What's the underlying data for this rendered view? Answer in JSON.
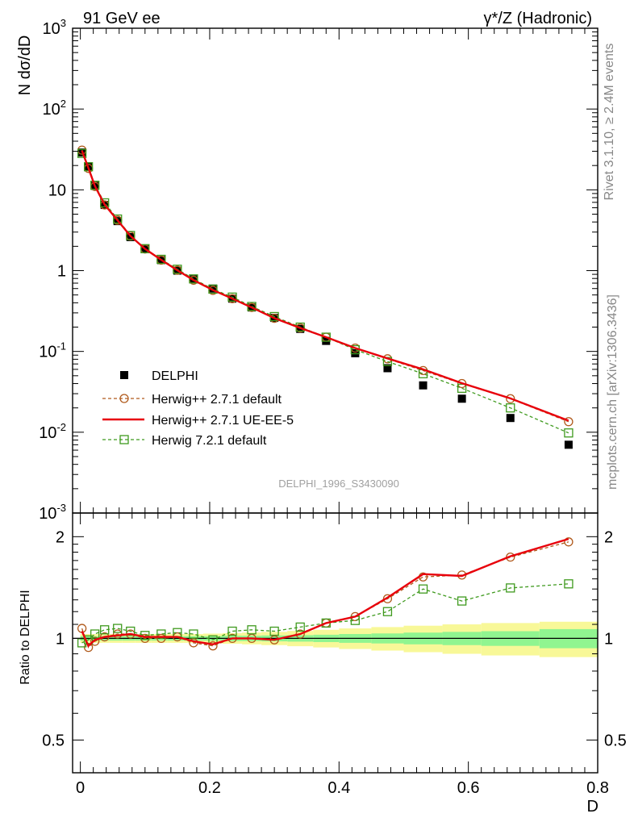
{
  "header": {
    "left_title": "91 GeV ee",
    "right_title": "γ*/Z (Hadronic)",
    "side_rivet": "Rivet 3.1.10, ≥ 2.4M events",
    "side_mcplots": "mcplots.cern.ch [arXiv:1306.3436]",
    "watermark": "DELPHI_1996_S3430090"
  },
  "colors": {
    "data": "#000000",
    "hw271_default": "#b05a1c",
    "hw271_ueee5": "#e8000b",
    "hw721_default": "#3f9a1e",
    "band_inner": "#90f590",
    "band_outer": "#f8f898"
  },
  "chart_data": [
    {
      "type": "scatter",
      "panel": "main",
      "ylabel": "N dσ/dD",
      "yscale": "log",
      "ylim": [
        0.001,
        1000
      ],
      "xlim": [
        -0.012,
        0.8
      ],
      "y_ticks": [
        "10^3",
        "10^2",
        "10",
        "1",
        "10^-1",
        "10^-2",
        "10^-3"
      ],
      "x": [
        0.0025,
        0.0125,
        0.0225,
        0.0375,
        0.0575,
        0.0775,
        0.1,
        0.125,
        0.15,
        0.175,
        0.205,
        0.235,
        0.265,
        0.3,
        0.34,
        0.38,
        0.425,
        0.475,
        0.53,
        0.59,
        0.665,
        0.755
      ],
      "series": [
        {
          "name": "DELPHI",
          "style": "data",
          "values": [
            29,
            19.5,
            11.2,
            6.5,
            4.1,
            2.6,
            1.85,
            1.35,
            1.0,
            0.78,
            0.6,
            0.45,
            0.35,
            0.26,
            0.19,
            0.135,
            0.095,
            0.062,
            0.038,
            0.026,
            0.015,
            0.007
          ]
        },
        {
          "name": "Herwig++ 2.7.1 default",
          "style": "circle-dashed",
          "values": [
            31,
            18.4,
            11.0,
            6.5,
            4.2,
            2.68,
            1.85,
            1.35,
            1.01,
            0.76,
            0.57,
            0.45,
            0.35,
            0.257,
            0.195,
            0.15,
            0.11,
            0.081,
            0.058,
            0.04,
            0.026,
            0.0135
          ]
        },
        {
          "name": "Herwig++ 2.7.1 UE-EE-5",
          "style": "solid",
          "values": [
            30.5,
            18.6,
            11.1,
            6.55,
            4.2,
            2.68,
            1.86,
            1.36,
            1.01,
            0.765,
            0.575,
            0.45,
            0.35,
            0.258,
            0.195,
            0.15,
            0.11,
            0.082,
            0.06,
            0.0405,
            0.0262,
            0.0139
          ]
        },
        {
          "name": "Herwig 7.2.1 default",
          "style": "square-dashed",
          "values": [
            28.2,
            19.3,
            11.4,
            6.9,
            4.35,
            2.72,
            1.87,
            1.38,
            1.04,
            0.79,
            0.59,
            0.47,
            0.36,
            0.27,
            0.2,
            0.15,
            0.105,
            0.075,
            0.053,
            0.035,
            0.02,
            0.0098
          ]
        }
      ],
      "legend": "center-left"
    },
    {
      "type": "line",
      "panel": "ratio",
      "ylabel": "Ratio to DELPHI",
      "xlabel": "D",
      "yscale": "log",
      "ylim": [
        0.4,
        2.35
      ],
      "y_ticks": [
        "0.5",
        "1",
        "2"
      ],
      "x_ticks": [
        "0",
        "0.2",
        "0.4",
        "0.6",
        "0.8"
      ],
      "reference": 1,
      "x": [
        0.0025,
        0.0125,
        0.0225,
        0.0375,
        0.0575,
        0.0775,
        0.1,
        0.125,
        0.15,
        0.175,
        0.205,
        0.235,
        0.265,
        0.3,
        0.34,
        0.38,
        0.425,
        0.475,
        0.53,
        0.59,
        0.665,
        0.755
      ],
      "bin_edges": [
        0,
        0.005,
        0.015,
        0.025,
        0.045,
        0.065,
        0.085,
        0.11,
        0.135,
        0.16,
        0.19,
        0.22,
        0.25,
        0.28,
        0.32,
        0.36,
        0.4,
        0.45,
        0.5,
        0.56,
        0.62,
        0.71,
        0.8
      ],
      "band_inner": [
        0.015,
        0.015,
        0.015,
        0.015,
        0.015,
        0.015,
        0.015,
        0.015,
        0.015,
        0.015,
        0.015,
        0.018,
        0.018,
        0.02,
        0.022,
        0.025,
        0.03,
        0.034,
        0.04,
        0.045,
        0.05,
        0.065
      ],
      "band_outer": [
        0.03,
        0.03,
        0.03,
        0.03,
        0.03,
        0.03,
        0.03,
        0.03,
        0.03,
        0.03,
        0.033,
        0.036,
        0.04,
        0.045,
        0.052,
        0.06,
        0.07,
        0.08,
        0.09,
        0.1,
        0.11,
        0.12
      ],
      "series": [
        {
          "name": "Herwig++ 2.7.1 default",
          "style": "circle-dashed",
          "values": [
            1.07,
            0.94,
            0.98,
            1.01,
            1.03,
            1.03,
            1.0,
            1.0,
            1.01,
            0.97,
            0.95,
            1.0,
            1.0,
            0.99,
            1.03,
            1.11,
            1.16,
            1.31,
            1.52,
            1.54,
            1.74,
            1.93
          ]
        },
        {
          "name": "Herwig++ 2.7.1 UE-EE-5",
          "style": "solid",
          "values": [
            1.05,
            0.95,
            0.99,
            1.01,
            1.02,
            1.03,
            1.01,
            1.01,
            1.01,
            0.98,
            0.96,
            1.0,
            1.0,
            0.99,
            1.03,
            1.11,
            1.16,
            1.32,
            1.55,
            1.53,
            1.75,
            1.97
          ]
        },
        {
          "name": "Herwig 7.2.1 default",
          "style": "square-dashed",
          "values": [
            0.97,
            0.99,
            1.03,
            1.06,
            1.07,
            1.05,
            1.02,
            1.03,
            1.04,
            1.03,
            0.99,
            1.05,
            1.06,
            1.05,
            1.08,
            1.11,
            1.13,
            1.2,
            1.4,
            1.29,
            1.41,
            1.45
          ]
        }
      ]
    }
  ]
}
